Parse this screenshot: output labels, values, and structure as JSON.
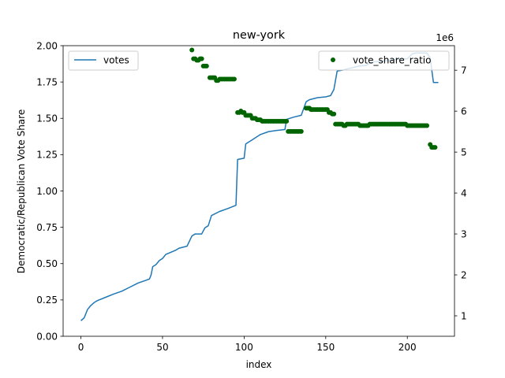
{
  "chart_data": {
    "type": "line+scatter",
    "title": "new-york",
    "xlabel": "index",
    "ylabel_left": "Democratic/Republican Vote Share",
    "y2_offset_label": "1e6",
    "xlim": [
      -10.9,
      228.9
    ],
    "ylim_left": [
      0.0,
      2.0
    ],
    "ylim_right": [
      0.5,
      7.6
    ],
    "x_ticks": [
      0,
      50,
      100,
      150,
      200
    ],
    "y_left_ticks": [
      "0.00",
      "0.25",
      "0.50",
      "0.75",
      "1.00",
      "1.25",
      "1.50",
      "1.75",
      "2.00"
    ],
    "y_right_ticks": [
      1,
      2,
      3,
      4,
      5,
      6,
      7
    ],
    "grid": false,
    "colors": {
      "votes": "#1f77b4",
      "vote_share_ratio": "#006400"
    },
    "legend_left": {
      "placement": "upper-left",
      "label": "votes"
    },
    "legend_right": {
      "placement": "upper-right",
      "label": "vote_share_ratio"
    },
    "series": [
      {
        "name": "votes",
        "kind": "line",
        "axis": "right",
        "points": [
          [
            0,
            0.88
          ],
          [
            2,
            0.95
          ],
          [
            4,
            1.15
          ],
          [
            6,
            1.25
          ],
          [
            8,
            1.32
          ],
          [
            10,
            1.37
          ],
          [
            15,
            1.45
          ],
          [
            20,
            1.53
          ],
          [
            25,
            1.6
          ],
          [
            30,
            1.7
          ],
          [
            35,
            1.8
          ],
          [
            40,
            1.87
          ],
          [
            42,
            1.9
          ],
          [
            43,
            2.0
          ],
          [
            44,
            2.2
          ],
          [
            46,
            2.25
          ],
          [
            48,
            2.35
          ],
          [
            50,
            2.4
          ],
          [
            52,
            2.5
          ],
          [
            55,
            2.55
          ],
          [
            58,
            2.6
          ],
          [
            60,
            2.65
          ],
          [
            65,
            2.7
          ],
          [
            68,
            2.95
          ],
          [
            70,
            3.0
          ],
          [
            74,
            3.0
          ],
          [
            76,
            3.15
          ],
          [
            78,
            3.2
          ],
          [
            80,
            3.45
          ],
          [
            85,
            3.55
          ],
          [
            90,
            3.62
          ],
          [
            95,
            3.7
          ],
          [
            96,
            4.82
          ],
          [
            100,
            4.85
          ],
          [
            101,
            5.2
          ],
          [
            105,
            5.3
          ],
          [
            110,
            5.43
          ],
          [
            115,
            5.5
          ],
          [
            120,
            5.53
          ],
          [
            125,
            5.55
          ],
          [
            126,
            5.8
          ],
          [
            130,
            5.85
          ],
          [
            135,
            5.9
          ],
          [
            138,
            6.23
          ],
          [
            140,
            6.28
          ],
          [
            145,
            6.33
          ],
          [
            150,
            6.35
          ],
          [
            153,
            6.38
          ],
          [
            155,
            6.53
          ],
          [
            157,
            6.98
          ],
          [
            160,
            7.0
          ],
          [
            165,
            7.05
          ],
          [
            170,
            7.1
          ],
          [
            175,
            7.12
          ],
          [
            178,
            7.2
          ],
          [
            185,
            7.22
          ],
          [
            190,
            7.25
          ],
          [
            195,
            7.27
          ],
          [
            200,
            7.28
          ],
          [
            203,
            7.4
          ],
          [
            205,
            7.42
          ],
          [
            212,
            7.42
          ],
          [
            214,
            7.3
          ],
          [
            216,
            6.7
          ],
          [
            219,
            6.7
          ]
        ]
      },
      {
        "name": "vote_share_ratio",
        "kind": "scatter",
        "axis": "left",
        "points": [
          [
            68,
            1.97
          ],
          [
            69,
            1.91
          ],
          [
            70,
            1.91
          ],
          [
            71,
            1.9
          ],
          [
            72,
            1.9
          ],
          [
            73,
            1.91
          ],
          [
            74,
            1.91
          ],
          [
            75,
            1.86
          ],
          [
            76,
            1.86
          ],
          [
            77,
            1.86
          ],
          [
            79,
            1.78
          ],
          [
            80,
            1.78
          ],
          [
            81,
            1.78
          ],
          [
            82,
            1.78
          ],
          [
            83,
            1.76
          ],
          [
            84,
            1.76
          ],
          [
            85,
            1.77
          ],
          [
            86,
            1.77
          ],
          [
            87,
            1.77
          ],
          [
            88,
            1.77
          ],
          [
            89,
            1.77
          ],
          [
            90,
            1.77
          ],
          [
            91,
            1.77
          ],
          [
            92,
            1.77
          ],
          [
            93,
            1.77
          ],
          [
            94,
            1.77
          ],
          [
            96,
            1.54
          ],
          [
            97,
            1.54
          ],
          [
            98,
            1.55
          ],
          [
            99,
            1.54
          ],
          [
            100,
            1.54
          ],
          [
            101,
            1.52
          ],
          [
            102,
            1.52
          ],
          [
            103,
            1.52
          ],
          [
            104,
            1.52
          ],
          [
            105,
            1.5
          ],
          [
            106,
            1.5
          ],
          [
            107,
            1.5
          ],
          [
            108,
            1.49
          ],
          [
            109,
            1.49
          ],
          [
            110,
            1.49
          ],
          [
            111,
            1.48
          ],
          [
            112,
            1.48
          ],
          [
            113,
            1.48
          ],
          [
            114,
            1.48
          ],
          [
            115,
            1.48
          ],
          [
            116,
            1.48
          ],
          [
            117,
            1.48
          ],
          [
            118,
            1.48
          ],
          [
            119,
            1.48
          ],
          [
            120,
            1.48
          ],
          [
            121,
            1.48
          ],
          [
            122,
            1.48
          ],
          [
            123,
            1.48
          ],
          [
            124,
            1.48
          ],
          [
            125,
            1.48
          ],
          [
            126,
            1.48
          ],
          [
            127,
            1.41
          ],
          [
            128,
            1.41
          ],
          [
            129,
            1.41
          ],
          [
            130,
            1.41
          ],
          [
            131,
            1.41
          ],
          [
            132,
            1.41
          ],
          [
            133,
            1.41
          ],
          [
            134,
            1.41
          ],
          [
            135,
            1.41
          ],
          [
            138,
            1.57
          ],
          [
            139,
            1.57
          ],
          [
            140,
            1.57
          ],
          [
            141,
            1.56
          ],
          [
            142,
            1.56
          ],
          [
            143,
            1.56
          ],
          [
            144,
            1.56
          ],
          [
            145,
            1.56
          ],
          [
            146,
            1.56
          ],
          [
            147,
            1.56
          ],
          [
            148,
            1.56
          ],
          [
            149,
            1.56
          ],
          [
            150,
            1.56
          ],
          [
            151,
            1.56
          ],
          [
            152,
            1.54
          ],
          [
            153,
            1.54
          ],
          [
            154,
            1.53
          ],
          [
            155,
            1.53
          ],
          [
            156,
            1.46
          ],
          [
            157,
            1.46
          ],
          [
            158,
            1.46
          ],
          [
            159,
            1.46
          ],
          [
            160,
            1.46
          ],
          [
            161,
            1.45
          ],
          [
            162,
            1.45
          ],
          [
            163,
            1.46
          ],
          [
            164,
            1.46
          ],
          [
            165,
            1.46
          ],
          [
            166,
            1.46
          ],
          [
            167,
            1.46
          ],
          [
            168,
            1.46
          ],
          [
            169,
            1.46
          ],
          [
            170,
            1.46
          ],
          [
            171,
            1.45
          ],
          [
            172,
            1.45
          ],
          [
            173,
            1.45
          ],
          [
            174,
            1.45
          ],
          [
            175,
            1.45
          ],
          [
            176,
            1.45
          ],
          [
            177,
            1.46
          ],
          [
            178,
            1.46
          ],
          [
            179,
            1.46
          ],
          [
            180,
            1.46
          ],
          [
            181,
            1.46
          ],
          [
            182,
            1.46
          ],
          [
            183,
            1.46
          ],
          [
            184,
            1.46
          ],
          [
            185,
            1.46
          ],
          [
            186,
            1.46
          ],
          [
            187,
            1.46
          ],
          [
            188,
            1.46
          ],
          [
            189,
            1.46
          ],
          [
            190,
            1.46
          ],
          [
            191,
            1.46
          ],
          [
            192,
            1.46
          ],
          [
            193,
            1.46
          ],
          [
            194,
            1.46
          ],
          [
            195,
            1.46
          ],
          [
            196,
            1.46
          ],
          [
            197,
            1.46
          ],
          [
            198,
            1.46
          ],
          [
            199,
            1.46
          ],
          [
            200,
            1.45
          ],
          [
            201,
            1.45
          ],
          [
            202,
            1.45
          ],
          [
            203,
            1.45
          ],
          [
            204,
            1.45
          ],
          [
            205,
            1.45
          ],
          [
            206,
            1.45
          ],
          [
            207,
            1.45
          ],
          [
            208,
            1.45
          ],
          [
            209,
            1.45
          ],
          [
            210,
            1.45
          ],
          [
            211,
            1.45
          ],
          [
            212,
            1.45
          ],
          [
            214,
            1.32
          ],
          [
            215,
            1.3
          ],
          [
            216,
            1.3
          ],
          [
            217,
            1.3
          ]
        ]
      }
    ]
  }
}
